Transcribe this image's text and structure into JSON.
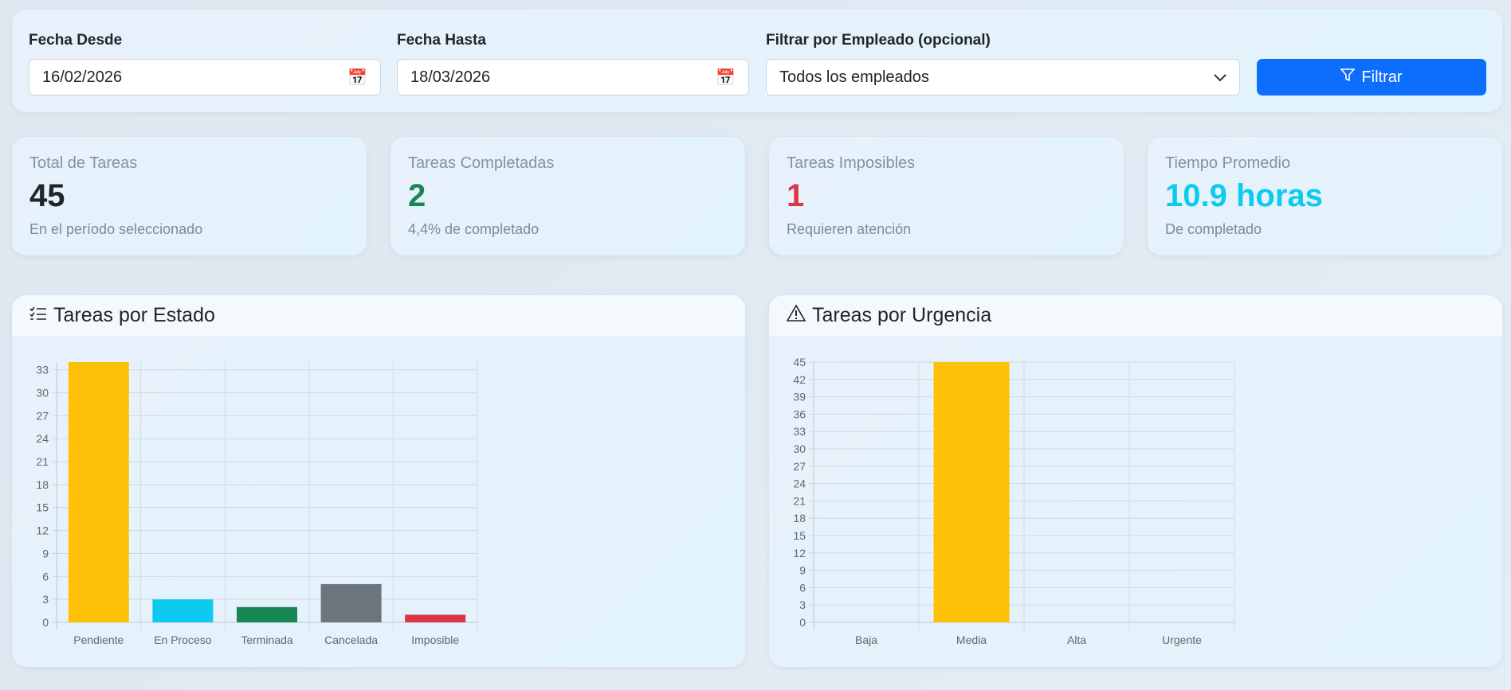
{
  "filters": {
    "date_from_label": "Fecha Desde",
    "date_from_value": "16/02/2026",
    "date_to_label": "Fecha Hasta",
    "date_to_value": "18/03/2026",
    "employee_label": "Filtrar por Empleado (opcional)",
    "employee_value": "Todos los empleados",
    "filter_button": "Filtrar"
  },
  "stats": [
    {
      "title": "Total de Tareas",
      "value": "45",
      "sub": "En el período seleccionado",
      "color": "#212529"
    },
    {
      "title": "Tareas Completadas",
      "value": "2",
      "sub": "4,4% de completado",
      "color": "#198754"
    },
    {
      "title": "Tareas Imposibles",
      "value": "1",
      "sub": "Requieren atención",
      "color": "#dc3545"
    },
    {
      "title": "Tiempo Promedio",
      "value": "10.9 horas",
      "sub": "De completado",
      "color": "#0dcaf0"
    }
  ],
  "charts": {
    "estado_title": "Tareas por Estado",
    "urgencia_title": "Tareas por Urgencia"
  },
  "chart_data": [
    {
      "type": "bar",
      "title": "Tareas por Estado",
      "categories": [
        "Pendiente",
        "En Proceso",
        "Terminada",
        "Cancelada",
        "Imposible"
      ],
      "values": [
        34,
        3,
        2,
        5,
        1
      ],
      "colors": [
        "#ffc107",
        "#0dcaf0",
        "#198754",
        "#6c757d",
        "#dc3545"
      ],
      "ylim": [
        0,
        34
      ],
      "yticks": [
        0,
        3,
        6,
        9,
        12,
        15,
        18,
        21,
        24,
        27,
        30,
        33
      ],
      "grid": true
    },
    {
      "type": "bar",
      "title": "Tareas por Urgencia",
      "categories": [
        "Baja",
        "Media",
        "Alta",
        "Urgente"
      ],
      "values": [
        0,
        45,
        0,
        0
      ],
      "colors": [
        "#ffc107",
        "#ffc107",
        "#ffc107",
        "#ffc107"
      ],
      "ylim": [
        0,
        45
      ],
      "yticks": [
        0,
        3,
        6,
        9,
        12,
        15,
        18,
        21,
        24,
        27,
        30,
        33,
        36,
        39,
        42,
        45
      ],
      "grid": true
    }
  ]
}
